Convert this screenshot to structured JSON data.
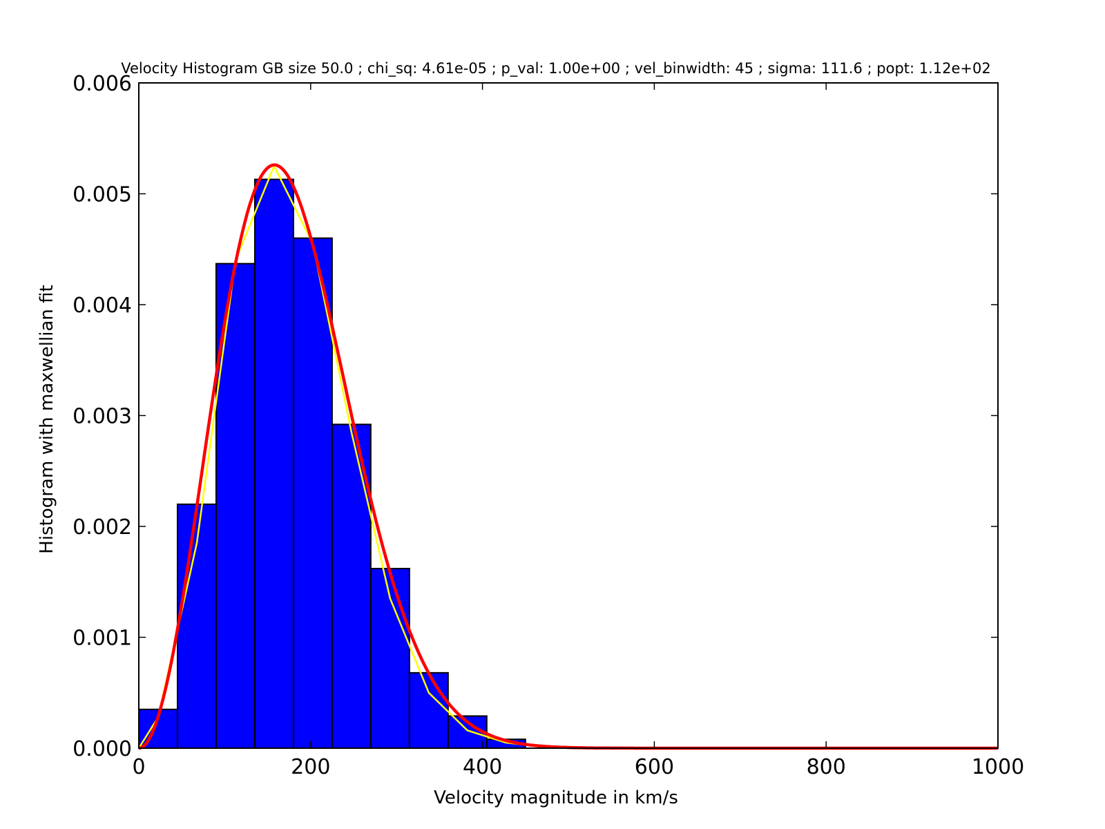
{
  "chart_data": {
    "type": "bar",
    "title": "Velocity Histogram GB size  50.0 ; chi_sq:  4.61e-05 ; p_val:   1.00e+00 ; vel_binwidth:  45 ; sigma:  111.6 ; popt: 1.12e+02",
    "xlabel": "Velocity magnitude in km/s",
    "ylabel": "Histogram with maxwellian fit",
    "xlim": [
      0,
      1000
    ],
    "ylim": [
      0,
      0.006
    ],
    "xticks": [
      "0",
      "200",
      "400",
      "600",
      "800",
      "1000"
    ],
    "yticks": [
      "0.000",
      "0.001",
      "0.002",
      "0.003",
      "0.004",
      "0.005",
      "0.006"
    ],
    "grid": false,
    "colors": {
      "bars": "#0000ff",
      "fit": "#ff0000",
      "interp": "#ffff00",
      "edge": "#000000"
    },
    "bins": {
      "edges": [
        0,
        45,
        90,
        135,
        180,
        225,
        270,
        315,
        360,
        405,
        450
      ],
      "values": [
        0.00035,
        0.0022,
        0.00437,
        0.00513,
        0.0046,
        0.00292,
        0.00162,
        0.00068,
        0.00029,
        8e-05
      ]
    },
    "series": [
      {
        "style": "line-thin-yellow",
        "x": [
          0,
          22.5,
          67.5,
          112.5,
          157.5,
          202.5,
          247.5,
          292.5,
          337.5,
          382.5,
          427.5,
          472.5,
          517.5,
          562.5,
          607.5,
          652.5,
          697.5,
          742.5,
          787.5,
          832.5,
          877.5,
          922.5,
          967.5,
          1000
        ],
        "y": [
          0.0,
          0.00028,
          0.00185,
          0.0044,
          0.00525,
          0.00455,
          0.00285,
          0.00135,
          0.0005,
          0.00016,
          5e-05,
          1e-05,
          5e-06,
          0,
          0,
          0,
          0,
          0,
          0,
          0,
          0,
          0,
          0,
          0
        ]
      },
      {
        "style": "line-thick-red",
        "model": "maxwellian",
        "sigma": 111.6
      }
    ]
  }
}
